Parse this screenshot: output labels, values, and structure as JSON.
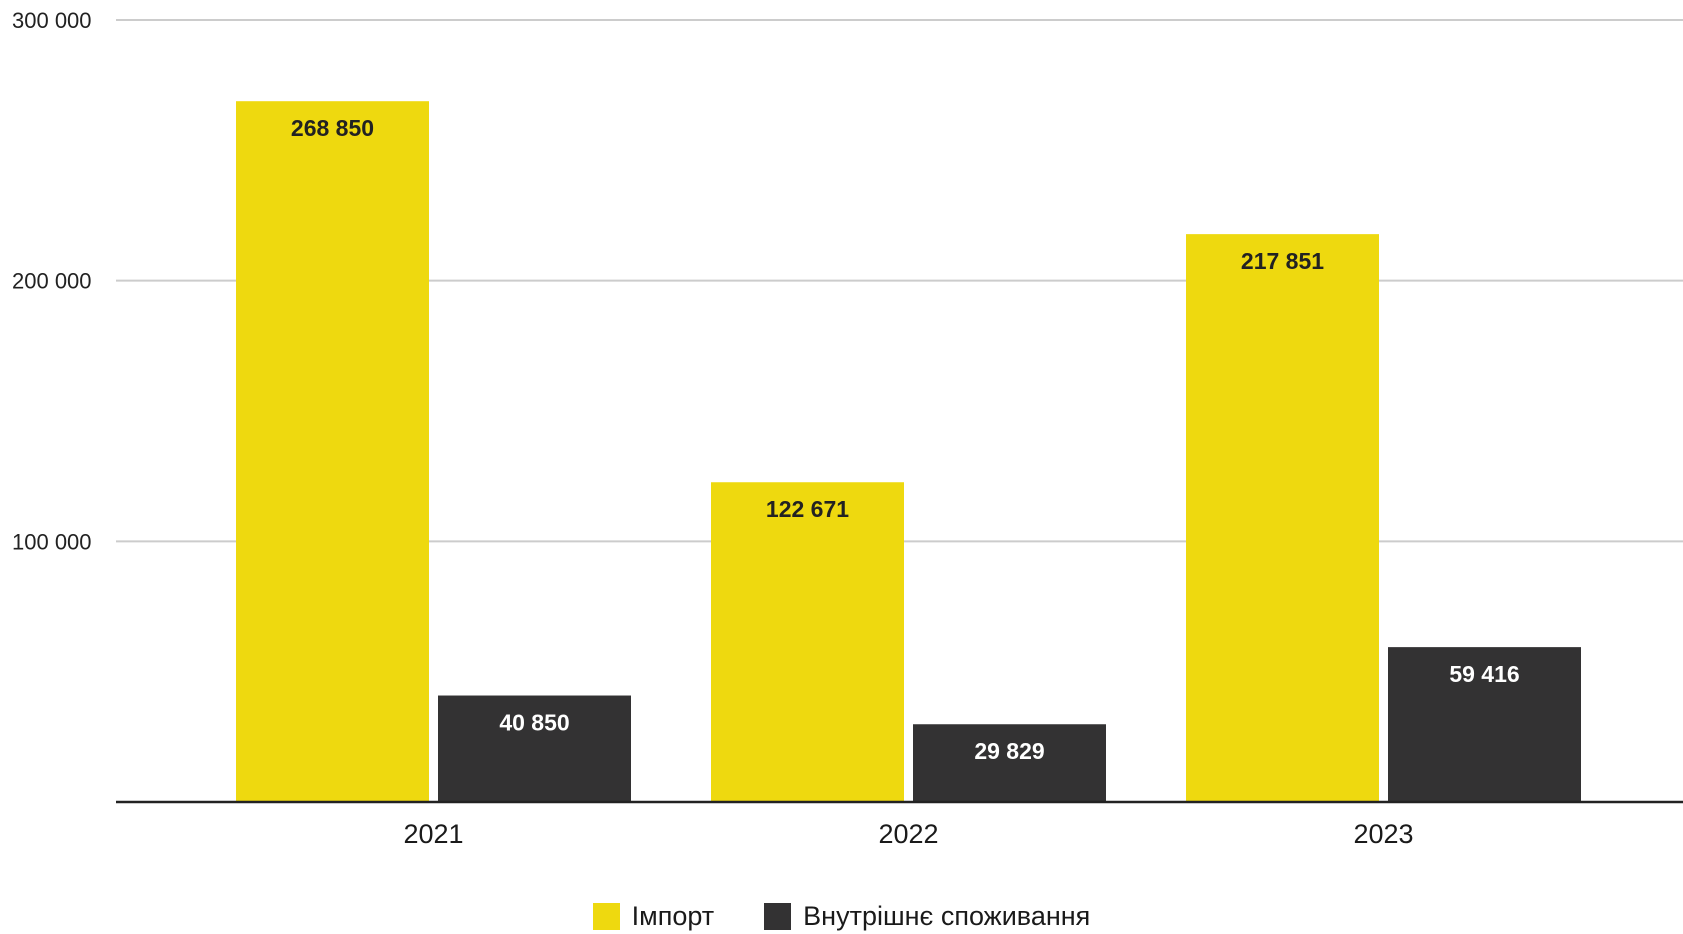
{
  "chart_data": {
    "type": "bar",
    "categories": [
      "2021",
      "2022",
      "2023"
    ],
    "series": [
      {
        "name": "Імпорт",
        "values": [
          268850,
          122671,
          217851
        ],
        "labels": [
          "268 850",
          "122 671",
          "217 851"
        ],
        "color": "#EED90F",
        "label_color": "#222222"
      },
      {
        "name": "Внутрішнє споживання",
        "values": [
          40850,
          29829,
          59416
        ],
        "labels": [
          "40 850",
          "29 829",
          "59 416"
        ],
        "color": "#333233",
        "label_color": "#ffffff"
      }
    ],
    "yticks": [
      100000,
      200000,
      300000
    ],
    "ytick_labels": [
      "100 000",
      "200 000",
      "300 000"
    ],
    "ylim": [
      0,
      300000
    ],
    "grid": true,
    "legend_position": "bottom-center",
    "title": "",
    "xlabel": "",
    "ylabel": ""
  }
}
